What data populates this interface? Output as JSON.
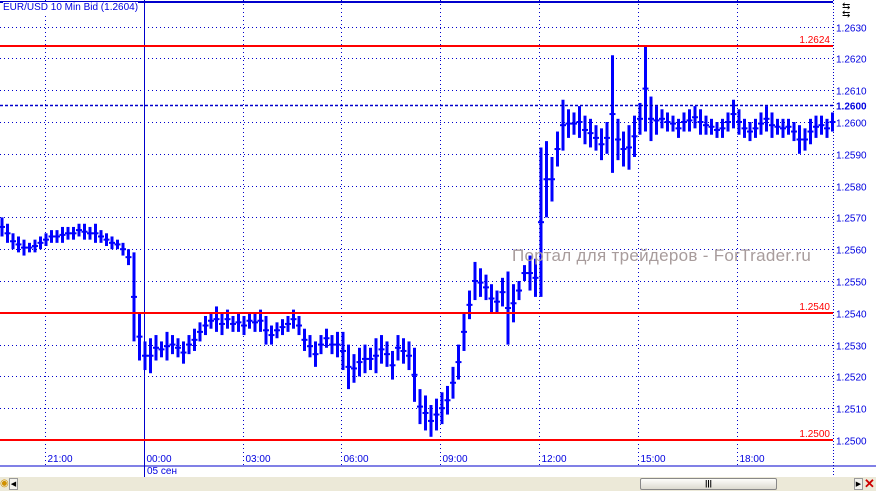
{
  "title": "EUR/USD 10 Min Bid (1.2604)",
  "watermark": "Портал для трейдеров - ForTrader.ru",
  "colors": {
    "bars": "#0000ff",
    "levels": "#ff0000",
    "grid": "#0000cc",
    "axis_text": "#0000e0"
  },
  "chart_data": {
    "type": "ohlc-bar",
    "instrument": "EUR/USD",
    "interval": "10 Min",
    "current_price": 1.2604,
    "ylim": [
      1.2497,
      1.2643
    ],
    "y_ticks": [
      "1.2500",
      "1.2510",
      "1.2520",
      "1.2530",
      "1.2540",
      "1.2550",
      "1.2560",
      "1.2570",
      "1.2580",
      "1.2590",
      "1.2600",
      "1.2610",
      "1.2620",
      "1.2630"
    ],
    "current_level_label": "1.2600",
    "x_ticks": [
      "21:00",
      "00:00",
      "03:00",
      "06:00",
      "09:00",
      "12:00",
      "15:00",
      "18:00"
    ],
    "date_label": "05 сен",
    "first_bar_time": "19:40",
    "horizontal_levels": [
      {
        "price": 1.2624,
        "label": "1.2624"
      },
      {
        "price": 1.254,
        "label": "1.2540"
      },
      {
        "price": 1.25,
        "label": "1.2500"
      }
    ],
    "bars_high_low": [
      [
        1.257,
        1.2564
      ],
      [
        1.2568,
        1.2562
      ],
      [
        1.2565,
        1.256
      ],
      [
        1.2564,
        1.2559
      ],
      [
        1.2563,
        1.2558
      ],
      [
        1.2562,
        1.2559
      ],
      [
        1.2563,
        1.2559
      ],
      [
        1.2564,
        1.256
      ],
      [
        1.2565,
        1.2561
      ],
      [
        1.2566,
        1.2562
      ],
      [
        1.2566,
        1.2562
      ],
      [
        1.2567,
        1.2562
      ],
      [
        1.2567,
        1.2563
      ],
      [
        1.2567,
        1.2563
      ],
      [
        1.2568,
        1.2564
      ],
      [
        1.2568,
        1.2563
      ],
      [
        1.2567,
        1.2563
      ],
      [
        1.2568,
        1.2562
      ],
      [
        1.2566,
        1.2562
      ],
      [
        1.2565,
        1.2561
      ],
      [
        1.2564,
        1.256
      ],
      [
        1.2563,
        1.256
      ],
      [
        1.2562,
        1.2558
      ],
      [
        1.256,
        1.2555
      ],
      [
        1.2559,
        1.2531
      ],
      [
        1.254,
        1.2525
      ],
      [
        1.2531,
        1.2522
      ],
      [
        1.2532,
        1.2521
      ],
      [
        1.2533,
        1.2525
      ],
      [
        1.2531,
        1.2526
      ],
      [
        1.2534,
        1.2525
      ],
      [
        1.2533,
        1.2527
      ],
      [
        1.2532,
        1.2526
      ],
      [
        1.2531,
        1.2524
      ],
      [
        1.2533,
        1.2527
      ],
      [
        1.2535,
        1.2528
      ],
      [
        1.2537,
        1.2531
      ],
      [
        1.2539,
        1.2533
      ],
      [
        1.254,
        1.2535
      ],
      [
        1.2542,
        1.2534
      ],
      [
        1.254,
        1.2533
      ],
      [
        1.2541,
        1.2535
      ],
      [
        1.2539,
        1.2534
      ],
      [
        1.254,
        1.2534
      ],
      [
        1.2539,
        1.2533
      ],
      [
        1.254,
        1.2535
      ],
      [
        1.254,
        1.2534
      ],
      [
        1.2541,
        1.2534
      ],
      [
        1.2539,
        1.253
      ],
      [
        1.2536,
        1.253
      ],
      [
        1.2537,
        1.2532
      ],
      [
        1.2538,
        1.2533
      ],
      [
        1.2539,
        1.2534
      ],
      [
        1.2541,
        1.2535
      ],
      [
        1.2539,
        1.2533
      ],
      [
        1.2535,
        1.2528
      ],
      [
        1.2533,
        1.2526
      ],
      [
        1.2531,
        1.2523
      ],
      [
        1.2533,
        1.2527
      ],
      [
        1.2535,
        1.2529
      ],
      [
        1.2533,
        1.2527
      ],
      [
        1.2534,
        1.2526
      ],
      [
        1.2534,
        1.2522
      ],
      [
        1.253,
        1.2516
      ],
      [
        1.2527,
        1.2518
      ],
      [
        1.2529,
        1.252
      ],
      [
        1.253,
        1.2521
      ],
      [
        1.2529,
        1.2522
      ],
      [
        1.2532,
        1.2521
      ],
      [
        1.2533,
        1.2524
      ],
      [
        1.2531,
        1.2523
      ],
      [
        1.2528,
        1.2519
      ],
      [
        1.2533,
        1.2525
      ],
      [
        1.2532,
        1.2524
      ],
      [
        1.2531,
        1.2522
      ],
      [
        1.2529,
        1.2512
      ],
      [
        1.2516,
        1.2505
      ],
      [
        1.2514,
        1.2503
      ],
      [
        1.2511,
        1.2501
      ],
      [
        1.2513,
        1.2503
      ],
      [
        1.2515,
        1.2505
      ],
      [
        1.2517,
        1.2508
      ],
      [
        1.2523,
        1.2513
      ],
      [
        1.253,
        1.2519
      ],
      [
        1.254,
        1.2528
      ],
      [
        1.2547,
        1.2538
      ],
      [
        1.2556,
        1.2544
      ],
      [
        1.2554,
        1.2545
      ],
      [
        1.2552,
        1.2544
      ],
      [
        1.2549,
        1.254
      ],
      [
        1.2547,
        1.254
      ],
      [
        1.2551,
        1.2542
      ],
      [
        1.2553,
        1.253
      ],
      [
        1.2549,
        1.2537
      ],
      [
        1.255,
        1.2544
      ],
      [
        1.2555,
        1.255
      ],
      [
        1.2558,
        1.2547
      ],
      [
        1.2557,
        1.2545
      ],
      [
        1.2592,
        1.2545
      ],
      [
        1.2594,
        1.257
      ],
      [
        1.2589,
        1.2575
      ],
      [
        1.2597,
        1.2586
      ],
      [
        1.2607,
        1.2591
      ],
      [
        1.2604,
        1.2595
      ],
      [
        1.2603,
        1.2596
      ],
      [
        1.2605,
        1.2595
      ],
      [
        1.2602,
        1.2593
      ],
      [
        1.2601,
        1.2592
      ],
      [
        1.2599,
        1.2591
      ],
      [
        1.2598,
        1.2588
      ],
      [
        1.26,
        1.259
      ],
      [
        1.2621,
        1.2584
      ],
      [
        1.2601,
        1.2588
      ],
      [
        1.2597,
        1.2586
      ],
      [
        1.2599,
        1.2585
      ],
      [
        1.2602,
        1.2589
      ],
      [
        1.2606,
        1.2596
      ],
      [
        1.2624,
        1.2597
      ],
      [
        1.2608,
        1.2594
      ],
      [
        1.2605,
        1.2596
      ],
      [
        1.2604,
        1.2598
      ],
      [
        1.2603,
        1.2597
      ],
      [
        1.2602,
        1.2597
      ],
      [
        1.2601,
        1.2595
      ],
      [
        1.2603,
        1.2597
      ],
      [
        1.2604,
        1.2597
      ],
      [
        1.2605,
        1.2598
      ],
      [
        1.2604,
        1.2596
      ],
      [
        1.2602,
        1.2596
      ],
      [
        1.2601,
        1.2596
      ],
      [
        1.26,
        1.2595
      ],
      [
        1.2601,
        1.2595
      ],
      [
        1.2603,
        1.2597
      ],
      [
        1.2607,
        1.2598
      ],
      [
        1.2604,
        1.2596
      ],
      [
        1.2601,
        1.2595
      ],
      [
        1.26,
        1.2594
      ],
      [
        1.2601,
        1.2595
      ],
      [
        1.2603,
        1.2596
      ],
      [
        1.2605,
        1.2597
      ],
      [
        1.2603,
        1.2595
      ],
      [
        1.2601,
        1.2596
      ],
      [
        1.2601,
        1.2595
      ],
      [
        1.2601,
        1.2596
      ],
      [
        1.26,
        1.2594
      ],
      [
        1.2599,
        1.259
      ],
      [
        1.2598,
        1.2591
      ],
      [
        1.2601,
        1.2593
      ],
      [
        1.2602,
        1.2595
      ],
      [
        1.2602,
        1.2596
      ],
      [
        1.2601,
        1.2595
      ],
      [
        1.2603,
        1.2597
      ]
    ]
  }
}
